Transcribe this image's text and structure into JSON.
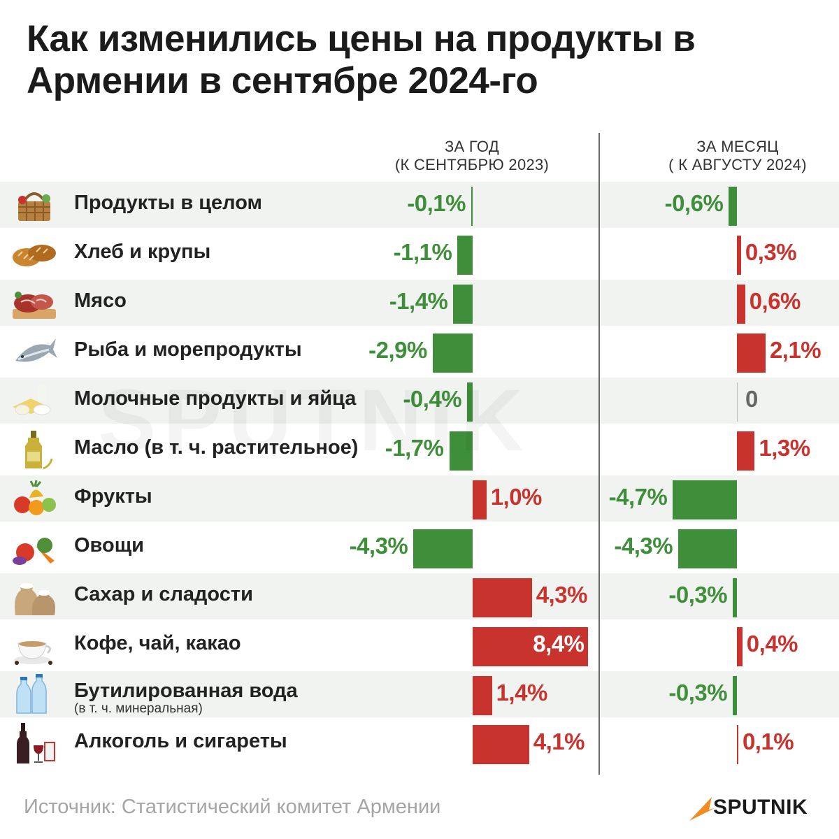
{
  "title": "Как изменились цены на продукты в Армении в сентябре 2024-го",
  "source": "Источник: Статистический комитет Армении",
  "brand": "SPUTNIK",
  "watermark": "SPUTNIK",
  "colors": {
    "positive": "#c8332e",
    "negative": "#3f8f3a",
    "zero": "#666666",
    "band": "#f1f3f1",
    "brand_accent": "#f28c1e"
  },
  "chart_data": {
    "type": "bar",
    "orientation": "horizontal",
    "series": [
      {
        "name": "ЗА ГОД (К СЕНТЯБРЮ 2023)",
        "header_line1": "ЗА ГОД",
        "header_line2": "(К СЕНТЯБРЮ 2023)",
        "values": [
          -0.1,
          -1.1,
          -1.4,
          -2.9,
          -0.4,
          -1.7,
          1.0,
          -4.3,
          4.3,
          8.4,
          1.4,
          4.1
        ],
        "labels": [
          "-0,1%",
          "-1,1%",
          "-1,4%",
          "-2,9%",
          "-0,4%",
          "-1,7%",
          "1,0%",
          "-4,3%",
          "4,3%",
          "8,4%",
          "1,4%",
          "4,1%"
        ]
      },
      {
        "name": "ЗА МЕСЯЦ ( К АВГУСТУ 2024)",
        "header_line1": "ЗА МЕСЯЦ",
        "header_line2": "( К АВГУСТУ 2024)",
        "values": [
          -0.6,
          0.3,
          0.6,
          2.1,
          0,
          1.3,
          -4.7,
          -4.3,
          -0.3,
          0.4,
          -0.3,
          0.1
        ],
        "labels": [
          "-0,6%",
          "0,3%",
          "0,6%",
          "2,1%",
          "0",
          "1,3%",
          "-4,7%",
          "-4,3%",
          "-0,3%",
          "0,4%",
          "-0,3%",
          "0,1%"
        ]
      }
    ],
    "categories": [
      {
        "name": "Продукты в целом",
        "sub": "",
        "icon": "picnic-basket-icon"
      },
      {
        "name": "Хлеб и крупы",
        "sub": "",
        "icon": "bread-icon"
      },
      {
        "name": "Мясо",
        "sub": "",
        "icon": "meat-icon"
      },
      {
        "name": "Рыба и морепродукты",
        "sub": "",
        "icon": "fish-icon"
      },
      {
        "name": "Молочные продукты и яйца",
        "sub": "",
        "icon": "dairy-icon"
      },
      {
        "name": "Масло (в т. ч. растительное)",
        "sub": "",
        "icon": "oil-bottle-icon"
      },
      {
        "name": "Фрукты",
        "sub": "",
        "icon": "fruits-icon"
      },
      {
        "name": "Овощи",
        "sub": "",
        "icon": "vegetables-icon"
      },
      {
        "name": "Сахар и сладости",
        "sub": "",
        "icon": "sugar-sack-icon"
      },
      {
        "name": "Кофе, чай, какао",
        "sub": "",
        "icon": "coffee-cup-icon"
      },
      {
        "name": "Бутилированная вода",
        "sub": "(в т. ч. минеральная)",
        "icon": "water-bottles-icon"
      },
      {
        "name": "Алкоголь и сигареты",
        "sub": "",
        "icon": "wine-cigarettes-icon"
      }
    ]
  }
}
